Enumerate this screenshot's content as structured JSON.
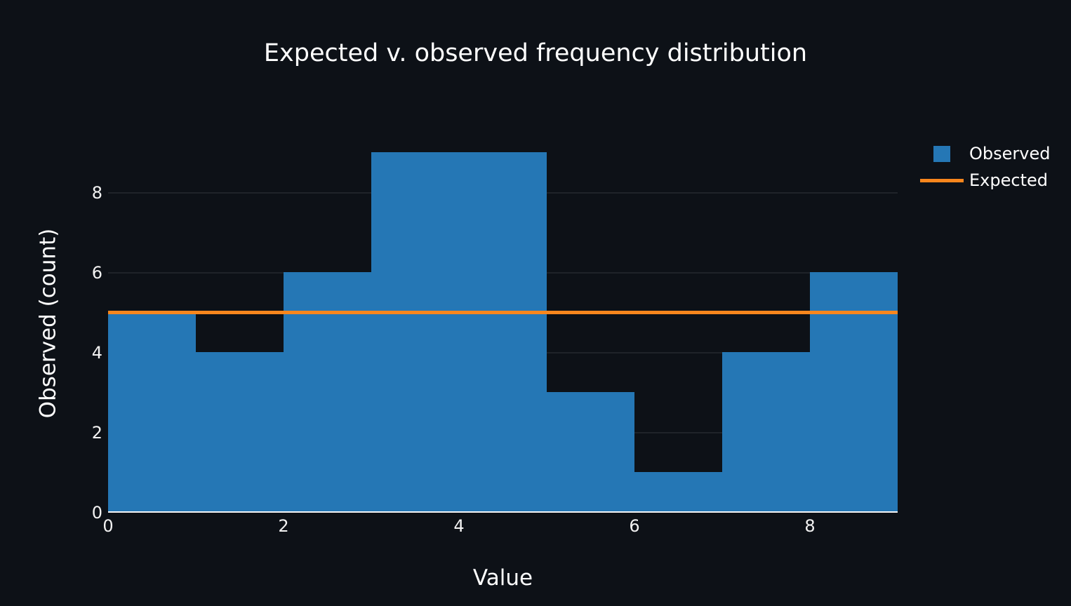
{
  "figure": {
    "background": "#0d1117"
  },
  "chart_data": {
    "type": "histogram",
    "title": "Expected v. observed frequency distribution",
    "xlabel": "Value",
    "ylabel": "Observed (count)",
    "bin_edges": [
      0,
      1,
      2,
      3,
      4,
      5,
      6,
      7,
      8,
      9
    ],
    "observed_counts": [
      5,
      4,
      6,
      9,
      9,
      3,
      1,
      4,
      6
    ],
    "expected_value": 5,
    "xticks": [
      0,
      2,
      4,
      6,
      8
    ],
    "yticks": [
      0,
      2,
      4,
      6,
      8
    ],
    "xlim": [
      0,
      9
    ],
    "ylim": [
      0,
      9.49
    ],
    "grid": "horizontal-only",
    "legend": {
      "position": "top-right-outside",
      "entries": [
        {
          "label": "Observed",
          "marker": "swatch",
          "color": "#2577b5"
        },
        {
          "label": "Expected",
          "marker": "line",
          "color": "#f8861d"
        }
      ]
    },
    "colors": {
      "observed_bar": "#2577b5",
      "expected_line": "#f8861d",
      "background": "#0d1117",
      "text": "#ffffff",
      "gridline": "rgba(255,255,255,0.08)",
      "axis_line": "#f5f5f5"
    }
  }
}
